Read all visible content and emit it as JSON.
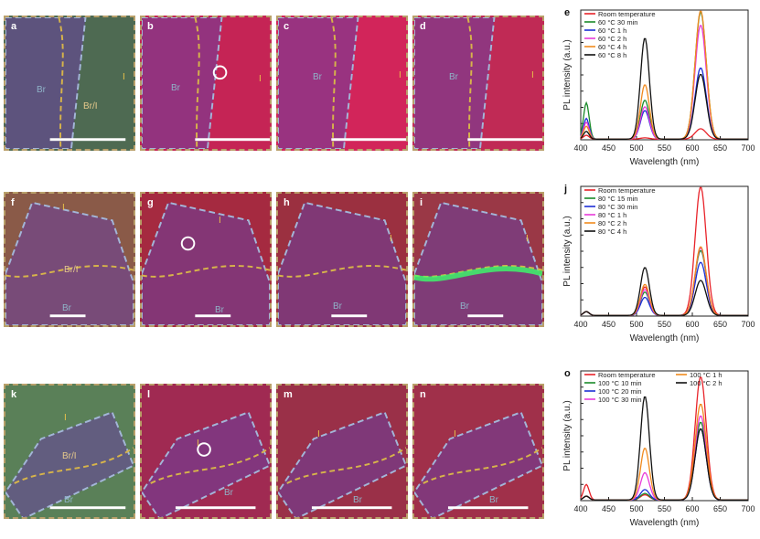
{
  "panels": [
    {
      "id": "a",
      "label": "a",
      "row": 0,
      "col": 0,
      "bg": "#4e6a52",
      "texts": [
        {
          "t": "Br",
          "c": "#8fb3c8"
        },
        {
          "t": "Br/I",
          "c": "#e5c98c"
        },
        {
          "t": "I",
          "c": "#e8c04a"
        }
      ]
    },
    {
      "id": "b",
      "label": "b",
      "row": 0,
      "col": 1,
      "bg": "#c52455",
      "texts": [
        {
          "t": "Br",
          "c": "#8fb3c8"
        },
        {
          "t": "I",
          "c": "#e8c04a"
        }
      ]
    },
    {
      "id": "c",
      "label": "c",
      "row": 0,
      "col": 2,
      "bg": "#d2255a",
      "texts": [
        {
          "t": "Br",
          "c": "#8fb3c8"
        },
        {
          "t": "I",
          "c": "#e8c04a"
        }
      ]
    },
    {
      "id": "d",
      "label": "d",
      "row": 0,
      "col": 3,
      "bg": "#c02a55",
      "texts": [
        {
          "t": "Br",
          "c": "#8fb3c8"
        },
        {
          "t": "I",
          "c": "#e8c04a"
        }
      ]
    },
    {
      "id": "f",
      "label": "f",
      "row": 1,
      "col": 0,
      "bg": "#8a5a48",
      "texts": [
        {
          "t": "I",
          "c": "#e8c04a"
        },
        {
          "t": "Br/I",
          "c": "#e5c98c"
        },
        {
          "t": "Br",
          "c": "#8fb3c8"
        }
      ]
    },
    {
      "id": "g",
      "label": "g",
      "row": 1,
      "col": 1,
      "bg": "#a52a40",
      "texts": [
        {
          "t": "I",
          "c": "#e8c04a"
        },
        {
          "t": "Br",
          "c": "#8fb3c8"
        }
      ]
    },
    {
      "id": "h",
      "label": "h",
      "row": 1,
      "col": 2,
      "bg": "#9b3040",
      "texts": [
        {
          "t": "I",
          "c": "#e8c04a"
        },
        {
          "t": "Br",
          "c": "#8fb3c8"
        }
      ]
    },
    {
      "id": "i",
      "label": "i",
      "row": 1,
      "col": 3,
      "bg": "#9a3846",
      "texts": [
        {
          "t": "I",
          "c": "#e8c04a"
        },
        {
          "t": "Br",
          "c": "#8fb3c8"
        }
      ]
    },
    {
      "id": "k",
      "label": "k",
      "row": 2,
      "col": 0,
      "bg": "#5a8058",
      "texts": [
        {
          "t": "I",
          "c": "#e8c04a"
        },
        {
          "t": "Br/I",
          "c": "#e5c98c"
        },
        {
          "t": "Br",
          "c": "#8fb3c8"
        }
      ]
    },
    {
      "id": "l",
      "label": "l",
      "row": 2,
      "col": 1,
      "bg": "#a02a52",
      "texts": [
        {
          "t": "I",
          "c": "#e8c04a"
        },
        {
          "t": "Br",
          "c": "#8fb3c8"
        }
      ]
    },
    {
      "id": "m",
      "label": "m",
      "row": 2,
      "col": 2,
      "bg": "#9a3048",
      "texts": [
        {
          "t": "I",
          "c": "#e8c04a"
        },
        {
          "t": "Br",
          "c": "#8fb3c8"
        }
      ]
    },
    {
      "id": "n",
      "label": "n",
      "row": 2,
      "col": 3,
      "bg": "#a0304a",
      "texts": [
        {
          "t": "I",
          "c": "#e8c04a"
        },
        {
          "t": "Br",
          "c": "#8fb3c8"
        }
      ]
    }
  ],
  "chart_data": [
    {
      "panel_label": "e",
      "type": "line",
      "xlabel": "Wavelength (nm)",
      "ylabel": "PL intensity (a.u.)",
      "xlim": [
        400,
        700
      ],
      "xticks": [
        400,
        450,
        500,
        550,
        600,
        650,
        700
      ],
      "ylim": [
        0,
        1.0
      ],
      "series": [
        {
          "name": "Room temperature",
          "color": "#e8232a",
          "peaks": [
            [
              410,
              0.03
            ],
            [
              515,
              0.01
            ],
            [
              615,
              0.08
            ]
          ]
        },
        {
          "name": "60 °C 30 min",
          "color": "#1a8a2a",
          "peaks": [
            [
              410,
              0.28
            ],
            [
              515,
              0.3
            ],
            [
              615,
              0.98
            ]
          ]
        },
        {
          "name": "60 °C 1 h",
          "color": "#1d2fd6",
          "peaks": [
            [
              410,
              0.16
            ],
            [
              515,
              0.22
            ],
            [
              615,
              0.55
            ]
          ]
        },
        {
          "name": "60 °C 2 h",
          "color": "#e83ad8",
          "peaks": [
            [
              410,
              0.13
            ],
            [
              515,
              0.25
            ],
            [
              615,
              0.88
            ]
          ]
        },
        {
          "name": "60 °C 4 h",
          "color": "#f08a1e",
          "peaks": [
            [
              410,
              0.1
            ],
            [
              515,
              0.42
            ],
            [
              615,
              0.99
            ]
          ]
        },
        {
          "name": "60 °C 8 h",
          "color": "#111111",
          "peaks": [
            [
              410,
              0.06
            ],
            [
              515,
              0.78
            ],
            [
              615,
              0.5
            ]
          ]
        }
      ]
    },
    {
      "panel_label": "j",
      "type": "line",
      "xlabel": "Wavelength (nm)",
      "ylabel": "PL intensity (a.u.)",
      "xlim": [
        400,
        700
      ],
      "xticks": [
        400,
        450,
        500,
        550,
        600,
        650,
        700
      ],
      "ylim": [
        0,
        1.0
      ],
      "series": [
        {
          "name": "Room temperature",
          "color": "#e8232a",
          "peaks": [
            [
              410,
              0.03
            ],
            [
              515,
              0.22
            ],
            [
              615,
              0.99
            ]
          ]
        },
        {
          "name": "80 °C 15 min",
          "color": "#1a8a2a",
          "peaks": [
            [
              410,
              0.03
            ],
            [
              515,
              0.18
            ],
            [
              615,
              0.5
            ]
          ]
        },
        {
          "name": "80 °C 30 min",
          "color": "#1d2fd6",
          "peaks": [
            [
              410,
              0.03
            ],
            [
              515,
              0.14
            ],
            [
              615,
              0.41
            ]
          ]
        },
        {
          "name": "80 °C 1 h",
          "color": "#e83ad8",
          "peaks": [
            [
              410,
              0.03
            ],
            [
              515,
              0.2
            ],
            [
              615,
              0.52
            ]
          ]
        },
        {
          "name": "80 °C 2 h",
          "color": "#f08a1e",
          "peaks": [
            [
              410,
              0.03
            ],
            [
              515,
              0.24
            ],
            [
              615,
              0.53
            ]
          ]
        },
        {
          "name": "80 °C 4 h",
          "color": "#111111",
          "peaks": [
            [
              410,
              0.03
            ],
            [
              515,
              0.37
            ],
            [
              615,
              0.27
            ]
          ]
        }
      ]
    },
    {
      "panel_label": "o",
      "type": "line",
      "xlabel": "Wavelength (nm)",
      "ylabel": "PL intensity (a.u.)",
      "xlim": [
        400,
        700
      ],
      "xticks": [
        400,
        450,
        500,
        550,
        600,
        650,
        700
      ],
      "ylim": [
        0,
        1.0
      ],
      "series": [
        {
          "name": "Room temperature",
          "color": "#e8232a",
          "peaks": [
            [
              410,
              0.12
            ],
            [
              515,
              0.04
            ],
            [
              615,
              0.95
            ]
          ]
        },
        {
          "name": "100 °C 10 min",
          "color": "#1a8a2a",
          "peaks": [
            [
              410,
              0.03
            ],
            [
              515,
              0.05
            ],
            [
              615,
              0.6
            ]
          ]
        },
        {
          "name": "100 °C 20 min",
          "color": "#1d2fd6",
          "peaks": [
            [
              410,
              0.03
            ],
            [
              515,
              0.08
            ],
            [
              615,
              0.55
            ]
          ]
        },
        {
          "name": "100 °C 30 min",
          "color": "#e83ad8",
          "peaks": [
            [
              410,
              0.03
            ],
            [
              515,
              0.21
            ],
            [
              615,
              0.65
            ]
          ]
        },
        {
          "name": "100 °C 1 h",
          "color": "#f08a1e",
          "peaks": [
            [
              410,
              0.03
            ],
            [
              515,
              0.4
            ],
            [
              615,
              0.74
            ]
          ]
        },
        {
          "name": "100 °C 2 h",
          "color": "#111111",
          "peaks": [
            [
              410,
              0.03
            ],
            [
              515,
              0.8
            ],
            [
              615,
              0.55
            ]
          ]
        }
      ]
    }
  ]
}
